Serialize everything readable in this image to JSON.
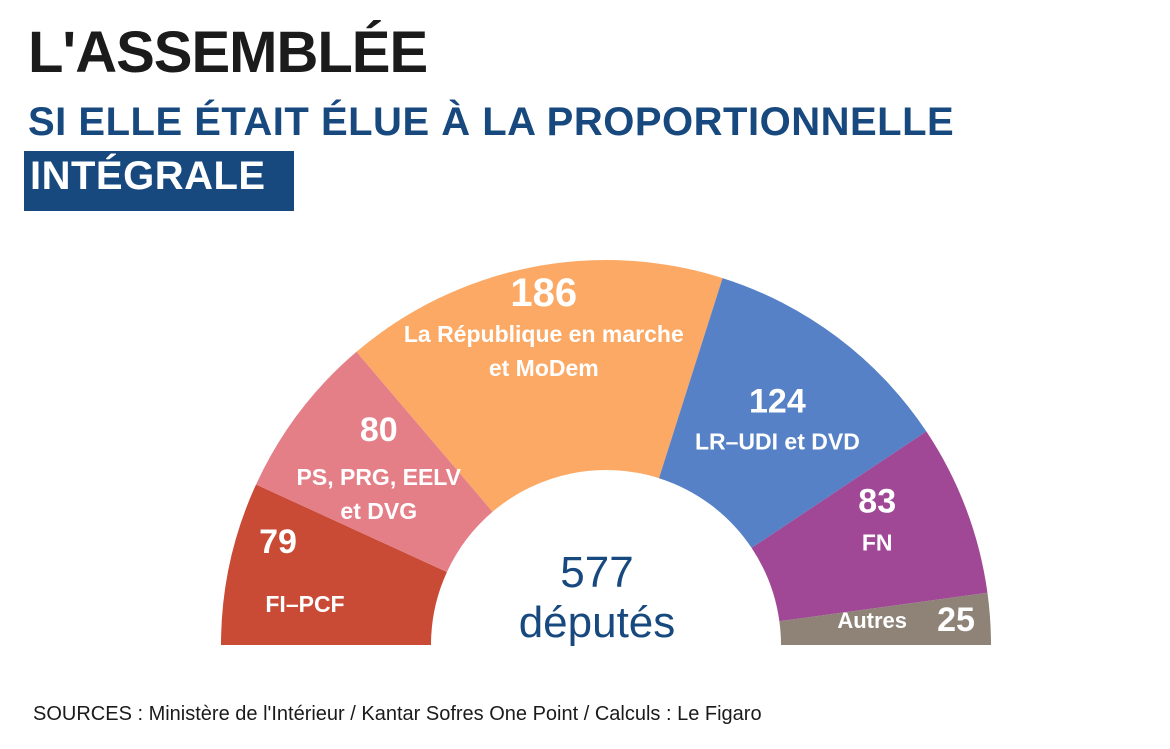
{
  "title": "L'ASSEMBLÉE",
  "subtitle": "SI ELLE ÉTAIT ÉLUE À LA PROPORTIONNELLE",
  "subtitle_highlight": "INTÉGRALE",
  "sources": "SOURCES : Ministère de l'Intérieur / Kantar Sofres One Point /  Calculs : Le Figaro",
  "chart_data": {
    "type": "pie",
    "shape": "half-donut",
    "total": 577,
    "center_value": "577",
    "center_label": "députés",
    "segments": [
      {
        "value": 79,
        "value_label": "79",
        "label_lines": [
          "FI–PCF"
        ],
        "color": "#c94a35"
      },
      {
        "value": 80,
        "value_label": "80",
        "label_lines": [
          "PS, PRG, EELV",
          "et DVG"
        ],
        "color": "#e47f88"
      },
      {
        "value": 186,
        "value_label": "186",
        "label_lines": [
          "La République en marche",
          "et MoDem"
        ],
        "color": "#fba964"
      },
      {
        "value": 124,
        "value_label": "124",
        "label_lines": [
          "LR–UDI et DVD"
        ],
        "color": "#5681c6"
      },
      {
        "value": 83,
        "value_label": "83",
        "label_lines": [
          "FN"
        ],
        "color": "#a04795"
      },
      {
        "value": 25,
        "value_label": "25",
        "label_lines": [
          "Autres"
        ],
        "color": "#8e8376"
      }
    ]
  }
}
